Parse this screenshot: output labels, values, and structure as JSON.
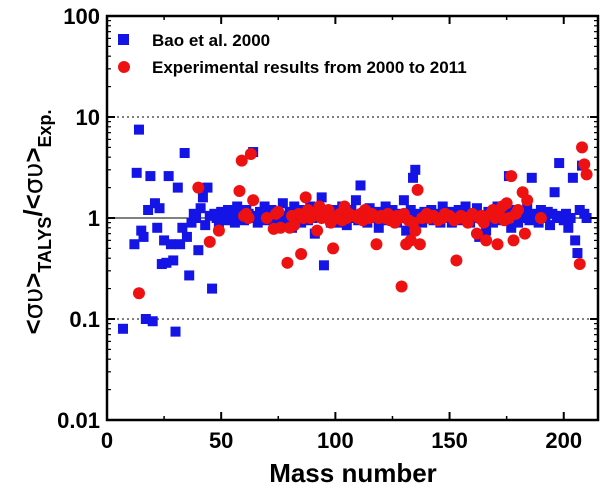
{
  "chart_data": {
    "type": "scatter",
    "xlabel": "Mass number",
    "ylabel_parts": {
      "open1": "<",
      "sym1": "συ",
      "close1": ">",
      "sub1": "TALYS",
      "slash": "/",
      "open2": "<",
      "sym2": "συ",
      "close2": ">",
      "sub2": "Exp."
    },
    "xlim": [
      0,
      215
    ],
    "ylim": [
      0.01,
      100
    ],
    "yscale": "log",
    "x_ticks": [
      0,
      50,
      100,
      150,
      200
    ],
    "x_tick_labels": [
      "0",
      "50",
      "100",
      "150",
      "200"
    ],
    "y_ticks": [
      0.01,
      0.1,
      1,
      10,
      100
    ],
    "y_tick_labels": [
      "0.01",
      "0.1",
      "1",
      "10",
      "100"
    ],
    "reference_lines": [
      0.1,
      1,
      10
    ],
    "legend_position": "top-left",
    "colors": {
      "series1": "#1414e6",
      "series2": "#ee1111"
    },
    "series": [
      {
        "name": "Bao et al. 2000",
        "marker": "square",
        "points": [
          [
            7,
            0.08
          ],
          [
            12,
            0.55
          ],
          [
            13,
            2.8
          ],
          [
            14,
            7.5
          ],
          [
            15,
            0.75
          ],
          [
            16,
            0.65
          ],
          [
            17,
            0.1
          ],
          [
            18,
            1.2
          ],
          [
            19,
            2.6
          ],
          [
            20,
            0.095
          ],
          [
            21,
            1.4
          ],
          [
            22,
            0.8
          ],
          [
            23,
            1.25
          ],
          [
            24,
            0.35
          ],
          [
            25,
            0.6
          ],
          [
            26,
            0.36
          ],
          [
            27,
            2.6
          ],
          [
            28,
            0.55
          ],
          [
            29,
            0.38
          ],
          [
            30,
            0.075
          ],
          [
            31,
            2.0
          ],
          [
            32,
            0.55
          ],
          [
            33,
            0.8
          ],
          [
            34,
            4.4
          ],
          [
            35,
            0.65
          ],
          [
            36,
            0.27
          ],
          [
            37,
            0.9
          ],
          [
            38,
            1.1
          ],
          [
            39,
            1.0
          ],
          [
            40,
            0.48
          ],
          [
            41,
            1.25
          ],
          [
            42,
            1.6
          ],
          [
            43,
            0.85
          ],
          [
            44,
            2.0
          ],
          [
            45,
            1.05
          ],
          [
            46,
            0.2
          ],
          [
            47,
            1.1
          ],
          [
            48,
            1.0
          ],
          [
            49,
            0.9
          ],
          [
            50,
            1.15
          ],
          [
            51,
            1.05
          ],
          [
            52,
            0.95
          ],
          [
            53,
            1.2
          ],
          [
            54,
            1.0
          ],
          [
            55,
            1.1
          ],
          [
            56,
            0.9
          ],
          [
            57,
            1.3
          ],
          [
            58,
            1.05
          ],
          [
            59,
            1.0
          ],
          [
            60,
            0.95
          ],
          [
            61,
            1.2
          ],
          [
            62,
            1.1
          ],
          [
            63,
            1.0
          ],
          [
            64,
            4.5
          ],
          [
            65,
            1.05
          ],
          [
            66,
            0.9
          ],
          [
            67,
            1.15
          ],
          [
            68,
            1.0
          ],
          [
            69,
            1.3
          ],
          [
            70,
            0.95
          ],
          [
            71,
            1.1
          ],
          [
            72,
            1.2
          ],
          [
            73,
            1.0
          ],
          [
            74,
            0.85
          ],
          [
            75,
            1.1
          ],
          [
            76,
            1.05
          ],
          [
            77,
            1.4
          ],
          [
            78,
            0.9
          ],
          [
            79,
            1.0
          ],
          [
            80,
            1.15
          ],
          [
            81,
            0.8
          ],
          [
            82,
            1.3
          ],
          [
            83,
            1.05
          ],
          [
            84,
            1.0
          ],
          [
            85,
            0.9
          ],
          [
            86,
            1.2
          ],
          [
            87,
            1.1
          ],
          [
            88,
            0.95
          ],
          [
            89,
            1.3
          ],
          [
            90,
            1.0
          ],
          [
            91,
            0.7
          ],
          [
            92,
            1.15
          ],
          [
            93,
            1.05
          ],
          [
            94,
            1.6
          ],
          [
            95,
            0.34
          ],
          [
            96,
            1.0
          ],
          [
            97,
            1.1
          ],
          [
            98,
            0.9
          ],
          [
            99,
            1.2
          ],
          [
            100,
            1.05
          ],
          [
            101,
            1.0
          ],
          [
            102,
            0.9
          ],
          [
            103,
            1.3
          ],
          [
            104,
            1.1
          ],
          [
            105,
            0.85
          ],
          [
            106,
            1.0
          ],
          [
            107,
            1.2
          ],
          [
            108,
            1.05
          ],
          [
            109,
            1.5
          ],
          [
            110,
            0.95
          ],
          [
            111,
            2.1
          ],
          [
            112,
            1.1
          ],
          [
            113,
            1.0
          ],
          [
            114,
            0.9
          ],
          [
            115,
            1.25
          ],
          [
            116,
            1.05
          ],
          [
            117,
            1.0
          ],
          [
            118,
            1.15
          ],
          [
            119,
            0.8
          ],
          [
            120,
            1.1
          ],
          [
            121,
            1.0
          ],
          [
            122,
            1.3
          ],
          [
            123,
            0.95
          ],
          [
            124,
            1.05
          ],
          [
            125,
            1.2
          ],
          [
            126,
            1.0
          ],
          [
            127,
            0.9
          ],
          [
            128,
            1.1
          ],
          [
            129,
            1.0
          ],
          [
            130,
            1.5
          ],
          [
            131,
            0.75
          ],
          [
            132,
            1.05
          ],
          [
            133,
            1.2
          ],
          [
            134,
            2.5
          ],
          [
            135,
            3.0
          ],
          [
            136,
            1.1
          ],
          [
            137,
            1.0
          ],
          [
            138,
            0.9
          ],
          [
            139,
            1.15
          ],
          [
            140,
            1.05
          ],
          [
            141,
            1.0
          ],
          [
            142,
            1.2
          ],
          [
            143,
            0.95
          ],
          [
            144,
            1.1
          ],
          [
            145,
            1.0
          ],
          [
            146,
            0.9
          ],
          [
            147,
            1.3
          ],
          [
            148,
            1.05
          ],
          [
            149,
            1.0
          ],
          [
            150,
            1.15
          ],
          [
            151,
            0.9
          ],
          [
            152,
            1.1
          ],
          [
            153,
            1.0
          ],
          [
            154,
            1.2
          ],
          [
            155,
            0.95
          ],
          [
            156,
            1.05
          ],
          [
            157,
            1.3
          ],
          [
            158,
            1.0
          ],
          [
            159,
            0.9
          ],
          [
            160,
            1.1
          ],
          [
            161,
            1.0
          ],
          [
            162,
            1.25
          ],
          [
            163,
            0.65
          ],
          [
            164,
            1.05
          ],
          [
            165,
            1.0
          ],
          [
            166,
            0.75
          ],
          [
            167,
            1.15
          ],
          [
            168,
            1.1
          ],
          [
            169,
            0.9
          ],
          [
            170,
            1.0
          ],
          [
            171,
            1.3
          ],
          [
            172,
            1.05
          ],
          [
            173,
            0.95
          ],
          [
            174,
            1.1
          ],
          [
            175,
            1.0
          ],
          [
            176,
            2.6
          ],
          [
            177,
            0.8
          ],
          [
            178,
            1.2
          ],
          [
            179,
            1.05
          ],
          [
            180,
            0.9
          ],
          [
            181,
            1.0
          ],
          [
            182,
            1.15
          ],
          [
            183,
            1.1
          ],
          [
            184,
            1.25
          ],
          [
            185,
            0.95
          ],
          [
            186,
            2.5
          ],
          [
            187,
            1.0
          ],
          [
            188,
            1.1
          ],
          [
            189,
            0.9
          ],
          [
            190,
            1.2
          ],
          [
            191,
            1.05
          ],
          [
            192,
            1.0
          ],
          [
            193,
            1.15
          ],
          [
            194,
            0.85
          ],
          [
            195,
            1.1
          ],
          [
            196,
            1.8
          ],
          [
            197,
            1.0
          ],
          [
            198,
            3.5
          ],
          [
            199,
            1.05
          ],
          [
            200,
            0.95
          ],
          [
            201,
            1.1
          ],
          [
            202,
            0.8
          ],
          [
            203,
            1.0
          ],
          [
            204,
            2.5
          ],
          [
            205,
            0.6
          ],
          [
            206,
            0.45
          ],
          [
            207,
            1.2
          ],
          [
            208,
            3.3
          ],
          [
            209,
            1.1
          ],
          [
            210,
            1.0
          ]
        ]
      },
      {
        "name": "Experimental results from 2000 to 2011",
        "marker": "circle",
        "points": [
          [
            14,
            0.18
          ],
          [
            40,
            2.0
          ],
          [
            45,
            0.58
          ],
          [
            49,
            0.75
          ],
          [
            58,
            1.85
          ],
          [
            59,
            3.7
          ],
          [
            60,
            1.05
          ],
          [
            61,
            1.1
          ],
          [
            62,
            1.0
          ],
          [
            63,
            4.3
          ],
          [
            64,
            1.5
          ],
          [
            70,
            1.0
          ],
          [
            73,
            0.78
          ],
          [
            74,
            1.1
          ],
          [
            75,
            1.15
          ],
          [
            76,
            0.8
          ],
          [
            79,
            0.36
          ],
          [
            80,
            0.8
          ],
          [
            81,
            1.05
          ],
          [
            82,
            0.85
          ],
          [
            84,
            1.1
          ],
          [
            85,
            0.44
          ],
          [
            86,
            1.0
          ],
          [
            87,
            1.6
          ],
          [
            88,
            1.2
          ],
          [
            89,
            1.0
          ],
          [
            90,
            1.05
          ],
          [
            91,
            1.1
          ],
          [
            92,
            0.75
          ],
          [
            93,
            1.3
          ],
          [
            94,
            1.0
          ],
          [
            96,
            1.05
          ],
          [
            97,
            1.2
          ],
          [
            98,
            0.9
          ],
          [
            99,
            0.5
          ],
          [
            100,
            1.0
          ],
          [
            102,
            1.1
          ],
          [
            103,
            0.95
          ],
          [
            104,
            1.3
          ],
          [
            105,
            1.0
          ],
          [
            106,
            1.1
          ],
          [
            108,
            1.05
          ],
          [
            110,
            1.0
          ],
          [
            111,
            1.1
          ],
          [
            112,
            0.95
          ],
          [
            113,
            1.2
          ],
          [
            114,
            1.05
          ],
          [
            115,
            1.0
          ],
          [
            116,
            1.1
          ],
          [
            118,
            0.55
          ],
          [
            119,
            1.0
          ],
          [
            120,
            1.05
          ],
          [
            122,
            1.0
          ],
          [
            123,
            1.1
          ],
          [
            124,
            0.95
          ],
          [
            125,
            1.0
          ],
          [
            126,
            0.9
          ],
          [
            127,
            1.05
          ],
          [
            128,
            1.0
          ],
          [
            129,
            0.21
          ],
          [
            130,
            1.1
          ],
          [
            131,
            0.55
          ],
          [
            132,
            0.95
          ],
          [
            133,
            0.6
          ],
          [
            134,
            0.9
          ],
          [
            135,
            0.75
          ],
          [
            136,
            1.9
          ],
          [
            137,
            0.55
          ],
          [
            138,
            1.0
          ],
          [
            140,
            1.1
          ],
          [
            141,
            1.0
          ],
          [
            143,
            1.05
          ],
          [
            145,
            0.95
          ],
          [
            147,
            1.0
          ],
          [
            148,
            1.1
          ],
          [
            150,
            1.05
          ],
          [
            152,
            0.95
          ],
          [
            153,
            0.38
          ],
          [
            154,
            1.0
          ],
          [
            155,
            1.05
          ],
          [
            157,
            1.0
          ],
          [
            158,
            0.9
          ],
          [
            160,
            1.1
          ],
          [
            162,
            0.7
          ],
          [
            163,
            1.0
          ],
          [
            164,
            1.05
          ],
          [
            165,
            0.9
          ],
          [
            166,
            0.6
          ],
          [
            168,
            1.1
          ],
          [
            169,
            1.2
          ],
          [
            170,
            1.0
          ],
          [
            171,
            0.55
          ],
          [
            172,
            1.05
          ],
          [
            173,
            1.3
          ],
          [
            174,
            0.95
          ],
          [
            175,
            1.4
          ],
          [
            176,
            1.0
          ],
          [
            177,
            2.6
          ],
          [
            178,
            0.6
          ],
          [
            179,
            1.1
          ],
          [
            180,
            1.2
          ],
          [
            182,
            1.8
          ],
          [
            183,
            0.7
          ],
          [
            184,
            1.5
          ],
          [
            190,
            1.0
          ],
          [
            207,
            0.35
          ],
          [
            208,
            5.0
          ],
          [
            209,
            3.4
          ],
          [
            210,
            2.7
          ]
        ]
      }
    ]
  }
}
